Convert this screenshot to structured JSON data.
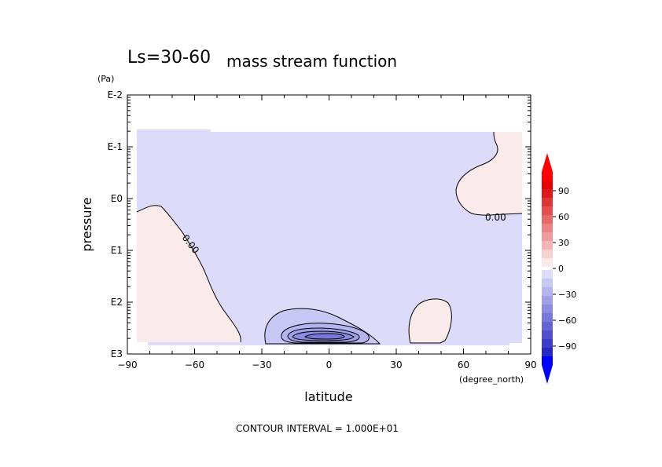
{
  "chart_data": {
    "type": "contour",
    "title_prefix": "Ls=30-60",
    "title": "mass stream function",
    "xlabel": "latitude",
    "xunit": "(degree_north)",
    "ylabel": "pressure",
    "yunit": "(Pa)",
    "xlim": [
      -90,
      90
    ],
    "xticks": [
      "−90",
      "−60",
      "−30",
      "0",
      "30",
      "60",
      "90"
    ],
    "ylog": true,
    "ylim": [
      "E3",
      "E-2"
    ],
    "yticks": [
      "E-2",
      "E-1",
      "E0",
      "E1",
      "E2",
      "E3"
    ],
    "contour_labels": [
      "0.00",
      "0.00"
    ],
    "footer": "CONTOUR INTERVAL = 1.000E+01",
    "colorbar": {
      "labels": [
        "90",
        "60",
        "30",
        "0",
        "−30",
        "−60",
        "−90"
      ],
      "colors_positive": [
        "#fbeaea",
        "#f7d0d0",
        "#f3b6b6",
        "#ef9c9c",
        "#ec8282",
        "#e86868",
        "#e44e4e",
        "#e03434",
        "#dc1a1a",
        "#e60000",
        "#ff0000"
      ],
      "colors_negative": [
        "#dcdcfa",
        "#c8c8f4",
        "#b4b4ee",
        "#a0a0e8",
        "#8c8ce2",
        "#7878dc",
        "#6464d6",
        "#5050d0",
        "#3c3cca",
        "#2828c4",
        "#0000ff"
      ]
    },
    "domain_color": "#dcdcfa"
  }
}
